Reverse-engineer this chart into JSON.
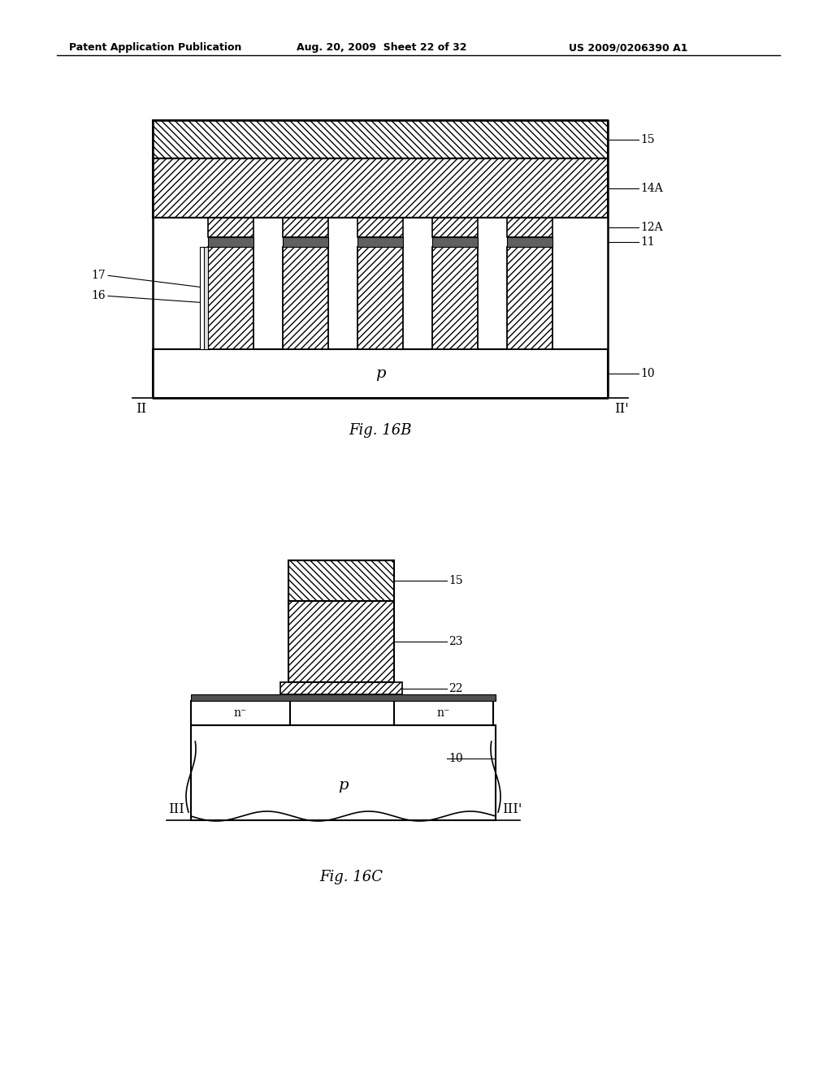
{
  "bg_color": "#ffffff",
  "header_left": "Patent Application Publication",
  "header_mid": "Aug. 20, 2009  Sheet 22 of 32",
  "header_right": "US 2009/0206390 A1"
}
